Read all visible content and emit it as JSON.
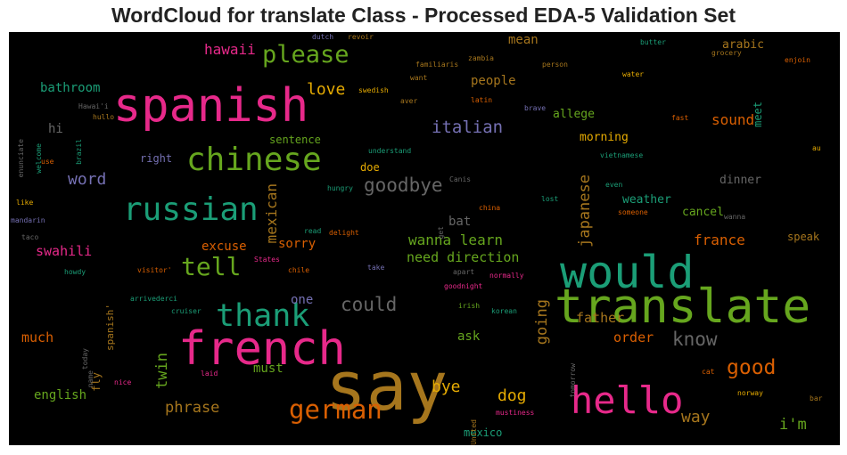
{
  "title": "WordCloud for translate Class - Processed EDA-5 Validation Set",
  "chart_data": {
    "type": "wordcloud",
    "title": "WordCloud for translate Class - Processed EDA-5 Validation Set",
    "background": "#000000",
    "words": [
      {
        "text": "say",
        "weight": 1.0,
        "color": "#a6761d"
      },
      {
        "text": "translate",
        "weight": 0.7,
        "color": "#66a61e"
      },
      {
        "text": "spanish",
        "weight": 0.68,
        "color": "#e7298a"
      },
      {
        "text": "french",
        "weight": 0.68,
        "color": "#e7298a"
      },
      {
        "text": "would",
        "weight": 0.66,
        "color": "#1b9e77"
      },
      {
        "text": "hello",
        "weight": 0.55,
        "color": "#e7298a"
      },
      {
        "text": "chinese",
        "weight": 0.48,
        "color": "#66a61e"
      },
      {
        "text": "russian",
        "weight": 0.48,
        "color": "#1b9e77"
      },
      {
        "text": "thank",
        "weight": 0.46,
        "color": "#1b9e77"
      },
      {
        "text": "german",
        "weight": 0.38,
        "color": "#d95f02"
      },
      {
        "text": "tell",
        "weight": 0.37,
        "color": "#66a61e"
      },
      {
        "text": "please",
        "weight": 0.35,
        "color": "#66a61e"
      },
      {
        "text": "good",
        "weight": 0.3,
        "color": "#d95f02"
      },
      {
        "text": "could",
        "weight": 0.28,
        "color": "#666666"
      },
      {
        "text": "goodbye",
        "weight": 0.27,
        "color": "#666666"
      },
      {
        "text": "know",
        "weight": 0.27,
        "color": "#666666"
      },
      {
        "text": "italian",
        "weight": 0.25,
        "color": "#7570b3"
      },
      {
        "text": "love",
        "weight": 0.24,
        "color": "#e6ab02"
      },
      {
        "text": "word",
        "weight": 0.24,
        "color": "#7570b3"
      },
      {
        "text": "way",
        "weight": 0.24,
        "color": "#a6761d"
      },
      {
        "text": "dog",
        "weight": 0.24,
        "color": "#e6ab02"
      },
      {
        "text": "bye",
        "weight": 0.24,
        "color": "#e6ab02"
      },
      {
        "text": "i'm",
        "weight": 0.22,
        "color": "#66a61e"
      },
      {
        "text": "going",
        "weight": 0.22,
        "color": "#a6761d"
      },
      {
        "text": "japanese",
        "weight": 0.22,
        "color": "#a6761d"
      },
      {
        "text": "phrase",
        "weight": 0.22,
        "color": "#a6761d"
      },
      {
        "text": "twin",
        "weight": 0.22,
        "color": "#66a61e"
      },
      {
        "text": "mexican",
        "weight": 0.21,
        "color": "#a6761d"
      },
      {
        "text": "france",
        "weight": 0.21,
        "color": "#d95f02"
      },
      {
        "text": "hawaii",
        "weight": 0.21,
        "color": "#e7298a"
      },
      {
        "text": "sound",
        "weight": 0.21,
        "color": "#d95f02"
      },
      {
        "text": "wanna learn",
        "weight": 0.21,
        "color": "#66a61e"
      },
      {
        "text": "need direction",
        "weight": 0.2,
        "color": "#66a61e"
      },
      {
        "text": "order",
        "weight": 0.2,
        "color": "#d95f02"
      },
      {
        "text": "father",
        "weight": 0.2,
        "color": "#a6761d"
      },
      {
        "text": "much",
        "weight": 0.2,
        "color": "#d95f02"
      },
      {
        "text": "swahili",
        "weight": 0.2,
        "color": "#e7298a"
      },
      {
        "text": "one",
        "weight": 0.19,
        "color": "#7570b3"
      },
      {
        "text": "must",
        "weight": 0.19,
        "color": "#66a61e"
      },
      {
        "text": "excuse",
        "weight": 0.19,
        "color": "#d95f02"
      },
      {
        "text": "sorry",
        "weight": 0.19,
        "color": "#d95f02"
      },
      {
        "text": "ask",
        "weight": 0.19,
        "color": "#66a61e"
      },
      {
        "text": "bat",
        "weight": 0.19,
        "color": "#666666"
      },
      {
        "text": "english",
        "weight": 0.19,
        "color": "#66a61e"
      },
      {
        "text": "mean",
        "weight": 0.19,
        "color": "#a6761d"
      },
      {
        "text": "people",
        "weight": 0.18,
        "color": "#a6761d"
      },
      {
        "text": "bathroom",
        "weight": 0.18,
        "color": "#1b9e77"
      },
      {
        "text": "allege",
        "weight": 0.17,
        "color": "#66a61e"
      },
      {
        "text": "morning",
        "weight": 0.17,
        "color": "#e6ab02"
      },
      {
        "text": "weather",
        "weight": 0.17,
        "color": "#1b9e77"
      },
      {
        "text": "cancel",
        "weight": 0.17,
        "color": "#66a61e"
      },
      {
        "text": "dinner",
        "weight": 0.17,
        "color": "#666666"
      },
      {
        "text": "arabic",
        "weight": 0.17,
        "color": "#a6761d"
      },
      {
        "text": "speak",
        "weight": 0.16,
        "color": "#a6761d"
      },
      {
        "text": "meet",
        "weight": 0.16,
        "color": "#1b9e77"
      },
      {
        "text": "hi",
        "weight": 0.18,
        "color": "#666666"
      },
      {
        "text": "sentence",
        "weight": 0.16,
        "color": "#66a61e"
      },
      {
        "text": "right",
        "weight": 0.16,
        "color": "#7570b3"
      },
      {
        "text": "doe",
        "weight": 0.16,
        "color": "#e6ab02"
      },
      {
        "text": "mexico",
        "weight": 0.16,
        "color": "#1b9e77"
      },
      {
        "text": "fly",
        "weight": 0.16,
        "color": "#a6761d"
      },
      {
        "text": "spanish'",
        "weight": 0.14,
        "color": "#a6761d"
      },
      {
        "text": "dutch",
        "weight": 0.1,
        "color": "#7570b3"
      },
      {
        "text": "revoir",
        "weight": 0.1,
        "color": "#a6761d"
      },
      {
        "text": "zambia",
        "weight": 0.09,
        "color": "#a6761d"
      },
      {
        "text": "familiaris",
        "weight": 0.1,
        "color": "#a6761d"
      },
      {
        "text": "person",
        "weight": 0.1,
        "color": "#a6761d"
      },
      {
        "text": "butter",
        "weight": 0.09,
        "color": "#1b9e77"
      },
      {
        "text": "grocery",
        "weight": 0.09,
        "color": "#a6761d"
      },
      {
        "text": "enjoin",
        "weight": 0.09,
        "color": "#d95f02"
      },
      {
        "text": "want",
        "weight": 0.09,
        "color": "#a6761d"
      },
      {
        "text": "water",
        "weight": 0.09,
        "color": "#e6ab02"
      },
      {
        "text": "swedish",
        "weight": 0.09,
        "color": "#e6ab02"
      },
      {
        "text": "aver",
        "weight": 0.09,
        "color": "#a6761d"
      },
      {
        "text": "latin",
        "weight": 0.09,
        "color": "#d95f02"
      },
      {
        "text": "brave",
        "weight": 0.09,
        "color": "#7570b3"
      },
      {
        "text": "fast",
        "weight": 0.09,
        "color": "#d95f02"
      },
      {
        "text": "Hawai'i",
        "weight": 0.08,
        "color": "#666666"
      },
      {
        "text": "hullo",
        "weight": 0.08,
        "color": "#a6761d"
      },
      {
        "text": "enunciate",
        "weight": 0.08,
        "color": "#666666"
      },
      {
        "text": "welcome",
        "weight": 0.08,
        "color": "#1b9e77"
      },
      {
        "text": "brazil",
        "weight": 0.08,
        "color": "#1b9e77"
      },
      {
        "text": "understand",
        "weight": 0.09,
        "color": "#1b9e77"
      },
      {
        "text": "vietnamese",
        "weight": 0.09,
        "color": "#1b9e77"
      },
      {
        "text": "use",
        "weight": 0.08,
        "color": "#d95f02"
      },
      {
        "text": "au",
        "weight": 0.08,
        "color": "#e6ab02"
      },
      {
        "text": "hungry",
        "weight": 0.09,
        "color": "#1b9e77"
      },
      {
        "text": "Canis",
        "weight": 0.08,
        "color": "#666666"
      },
      {
        "text": "even",
        "weight": 0.08,
        "color": "#1b9e77"
      },
      {
        "text": "lost",
        "weight": 0.09,
        "color": "#1b9e77"
      },
      {
        "text": "like",
        "weight": 0.08,
        "color": "#e6ab02"
      },
      {
        "text": "china",
        "weight": 0.09,
        "color": "#d95f02"
      },
      {
        "text": "someone",
        "weight": 0.08,
        "color": "#d95f02"
      },
      {
        "text": "wanna",
        "weight": 0.08,
        "color": "#666666"
      },
      {
        "text": "mandarin",
        "weight": 0.08,
        "color": "#7570b3"
      },
      {
        "text": "read",
        "weight": 0.08,
        "color": "#1b9e77"
      },
      {
        "text": "delight",
        "weight": 0.09,
        "color": "#d95f02"
      },
      {
        "text": "get",
        "weight": 0.08,
        "color": "#666666"
      },
      {
        "text": "taco",
        "weight": 0.08,
        "color": "#666666"
      },
      {
        "text": "States",
        "weight": 0.09,
        "color": "#e7298a"
      },
      {
        "text": "howdy",
        "weight": 0.08,
        "color": "#1b9e77"
      },
      {
        "text": "visitor'",
        "weight": 0.08,
        "color": "#d95f02"
      },
      {
        "text": "chile",
        "weight": 0.09,
        "color": "#d95f02"
      },
      {
        "text": "take",
        "weight": 0.08,
        "color": "#7570b3"
      },
      {
        "text": "apart",
        "weight": 0.08,
        "color": "#666666"
      },
      {
        "text": "normally",
        "weight": 0.08,
        "color": "#e7298a"
      },
      {
        "text": "goodnight",
        "weight": 0.08,
        "color": "#e7298a"
      },
      {
        "text": "arrivederci",
        "weight": 0.08,
        "color": "#1b9e77"
      },
      {
        "text": "cruiser",
        "weight": 0.08,
        "color": "#1b9e77"
      },
      {
        "text": "irish",
        "weight": 0.08,
        "color": "#66a61e"
      },
      {
        "text": "korean",
        "weight": 0.08,
        "color": "#1b9e77"
      },
      {
        "text": "today",
        "weight": 0.07,
        "color": "#666666"
      },
      {
        "text": "name",
        "weight": 0.07,
        "color": "#666666"
      },
      {
        "text": "tomorrow",
        "weight": 0.07,
        "color": "#666666"
      },
      {
        "text": "laid",
        "weight": 0.08,
        "color": "#e7298a"
      },
      {
        "text": "nice",
        "weight": 0.08,
        "color": "#e7298a"
      },
      {
        "text": "cat",
        "weight": 0.08,
        "color": "#d95f02"
      },
      {
        "text": "norway",
        "weight": 0.08,
        "color": "#e6ab02"
      },
      {
        "text": "bar",
        "weight": 0.08,
        "color": "#a6761d"
      },
      {
        "text": "United",
        "weight": 0.08,
        "color": "#a6761d"
      },
      {
        "text": "mustiness",
        "weight": 0.08,
        "color": "#e7298a"
      }
    ]
  }
}
